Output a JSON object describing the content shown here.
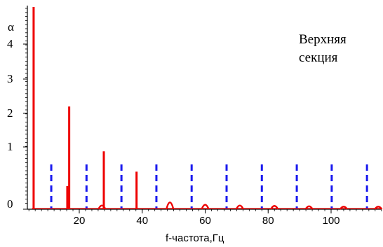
{
  "chart_data": {
    "type": "line",
    "ylabel": "α",
    "xlabel": "f-частота,Гц",
    "annotation": [
      "Верхняя",
      "секция"
    ],
    "x_ticks": [
      20,
      40,
      60,
      80,
      100
    ],
    "y_ticks": [
      {
        "label": "0",
        "value": 0
      },
      {
        "label": "1",
        "value": 1
      },
      {
        "label": "2",
        "value": 2
      },
      {
        "label": "3",
        "value": 3
      },
      {
        "label": "4",
        "value": 4
      }
    ],
    "xlim": [
      2,
      116
    ],
    "ylim": [
      0,
      5.5
    ],
    "colors": {
      "spectrum": "#ee0000",
      "markers": "#1a1aee",
      "axes": "#000000"
    },
    "red_spectrum_peaks": [
      {
        "x": 5.5,
        "y": 5.5
      },
      {
        "x": 16.2,
        "y": 0.3
      },
      {
        "x": 16.8,
        "y": 2.2
      },
      {
        "x": 27.2,
        "y": 0.06
      },
      {
        "x": 27.8,
        "y": 0.9
      },
      {
        "x": 38.2,
        "y": 0.5
      },
      {
        "x": 48.8,
        "y": 0.14
      },
      {
        "x": 60.0,
        "y": 0.08
      },
      {
        "x": 71.0,
        "y": 0.06
      },
      {
        "x": 82.0,
        "y": 0.05
      },
      {
        "x": 93.0,
        "y": 0.04
      },
      {
        "x": 104.0,
        "y": 0.03
      },
      {
        "x": 115.0,
        "y": 0.03
      }
    ],
    "blue_dashed_lines_x": [
      11.1,
      22.3,
      33.4,
      44.5,
      55.7,
      66.8,
      78.0,
      89.1,
      100.2,
      111.4
    ],
    "blue_dashed_lines_y": [
      0,
      0.6
    ]
  }
}
